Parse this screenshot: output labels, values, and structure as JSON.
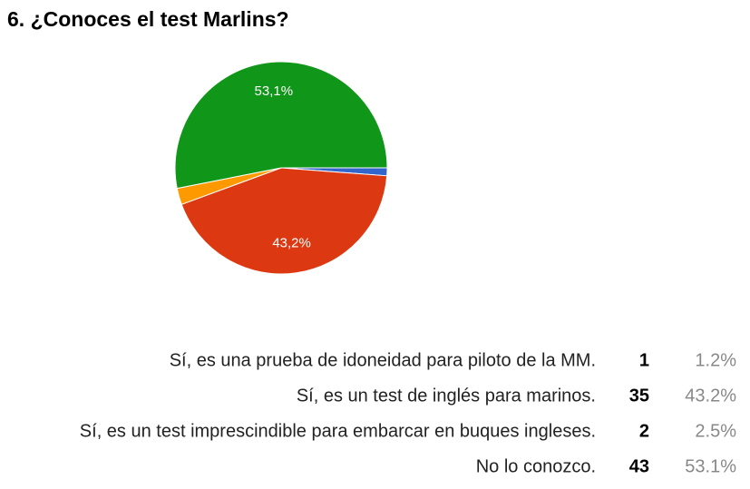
{
  "chart_data": {
    "type": "pie",
    "title": "6. ¿Conoces el test Marlins?",
    "categories": [
      "Sí, es una prueba de idoneidad para piloto de la MM.",
      "Sí, es un test de inglés para marinos.",
      "Sí, es un test imprescindible para embarcar en buques ingleses.",
      "No lo conozco."
    ],
    "values": [
      1.2,
      43.2,
      2.5,
      53.1
    ],
    "value_labels": [
      null,
      "43,2%",
      null,
      "53,1%"
    ],
    "counts": [
      1,
      35,
      2,
      43
    ],
    "percent_labels": [
      "1.2%",
      "43.2%",
      "2.5%",
      "53.1%"
    ],
    "colors": [
      "#3366cc",
      "#dc3912",
      "#ff9900",
      "#109618"
    ]
  }
}
